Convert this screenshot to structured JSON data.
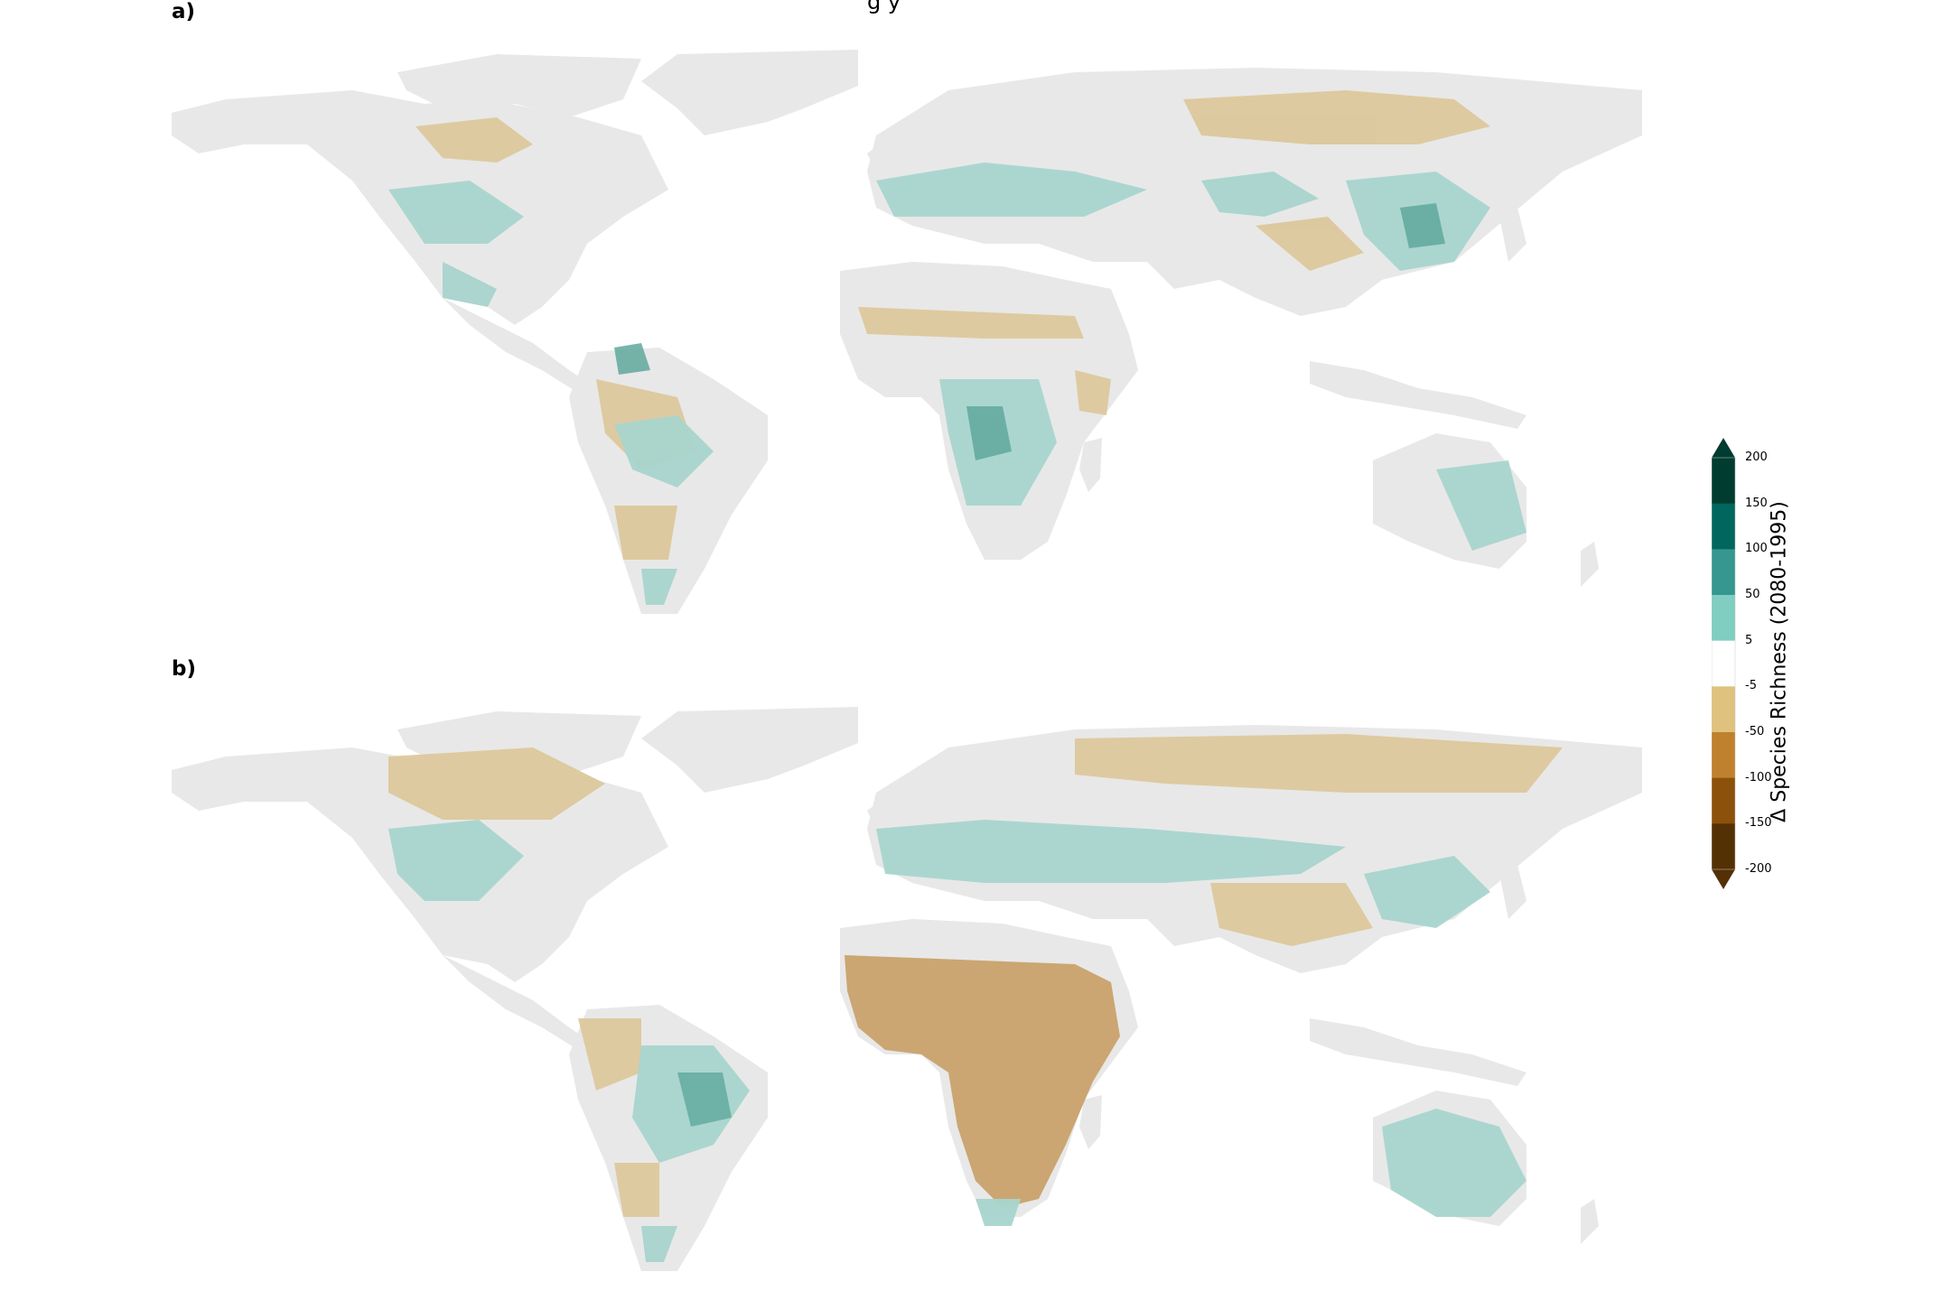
{
  "figure": {
    "title_fragment": "g y",
    "panels": [
      {
        "id": "a",
        "label": "a)"
      },
      {
        "id": "b",
        "label": "b)"
      }
    ]
  },
  "legend": {
    "label": "Δ Species Richness (2080-1995)",
    "ticks": [
      "200",
      "150",
      "100",
      "50",
      "5",
      "-5",
      "-50",
      "-100",
      "-150",
      "-200"
    ],
    "bins": [
      {
        "from": 150,
        "to": 200,
        "color": "#003c30"
      },
      {
        "from": 100,
        "to": 150,
        "color": "#01665e"
      },
      {
        "from": 50,
        "to": 100,
        "color": "#35978f"
      },
      {
        "from": 5,
        "to": 50,
        "color": "#80cdc1"
      },
      {
        "from": -5,
        "to": 5,
        "color": "#ffffff"
      },
      {
        "from": -50,
        "to": -5,
        "color": "#dfc27d"
      },
      {
        "from": -100,
        "to": -50,
        "color": "#bf812d"
      },
      {
        "from": -150,
        "to": -100,
        "color": "#8c510a"
      },
      {
        "from": -200,
        "to": -150,
        "color": "#543005"
      }
    ],
    "extend": "both"
  },
  "colors": {
    "no_data_land": "#e8e8e8",
    "increase": "#a8d5cd",
    "decrease": "#ddc89c",
    "strong_decrease": "#c9a26b",
    "strong_increase": "#5fa89c"
  }
}
